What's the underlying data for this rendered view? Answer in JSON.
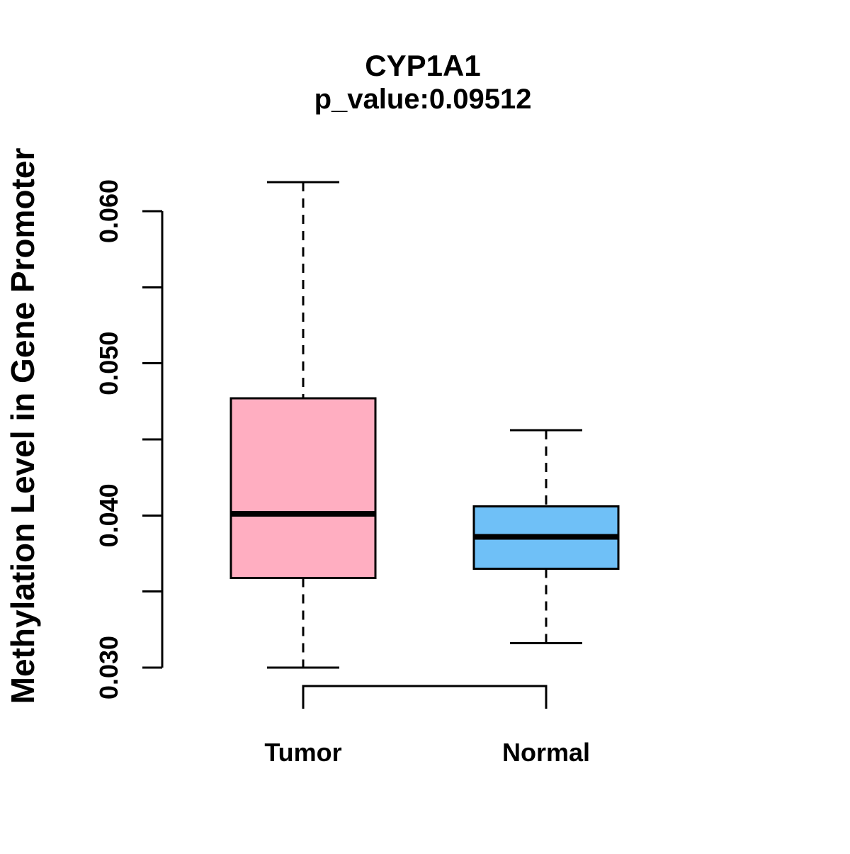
{
  "chart_data": {
    "type": "boxplot",
    "title": "CYP1A1",
    "subtitle": "p_value:0.09512",
    "ylabel": "Methylation Level in Gene Promoter",
    "categories": [
      "Tumor",
      "Normal"
    ],
    "series": [
      {
        "name": "Tumor",
        "fill_color": "#ffaec1",
        "whisker_low": 0.03,
        "q1": 0.0359,
        "median": 0.0401,
        "q3": 0.0477,
        "whisker_high": 0.0619
      },
      {
        "name": "Normal",
        "fill_color": "#6fc0f7",
        "whisker_low": 0.0316,
        "q1": 0.0365,
        "median": 0.0386,
        "q3": 0.0406,
        "whisker_high": 0.0456
      }
    ],
    "border_color": "#000000",
    "median_color": "#000000",
    "whisker_style": "dashed",
    "ylim": [
      0.03,
      0.062
    ],
    "yticks": {
      "labels": [
        "0.030",
        "0.040",
        "0.050",
        "0.060"
      ],
      "labeled_values": [
        0.03,
        0.04,
        0.05,
        0.06
      ],
      "minor_values": [
        0.035,
        0.045,
        0.055
      ]
    },
    "grid": false,
    "legend": "none"
  }
}
